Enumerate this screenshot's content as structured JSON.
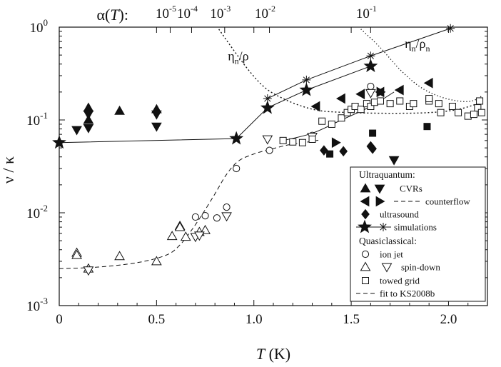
{
  "chart_data": {
    "type": "scatter",
    "xlabel": "T (K)",
    "ylabel": "ν / κ",
    "xlim": [
      0,
      2.2
    ],
    "ylim": [
      0.001,
      1
    ],
    "yscale": "log",
    "x_ticks": [
      "0",
      "0.5",
      "1.0",
      "1.5",
      "2.0"
    ],
    "y_ticks": [
      {
        "base": "10",
        "exp": "0"
      },
      {
        "base": "10",
        "exp": "-1"
      },
      {
        "base": "10",
        "exp": "-2"
      },
      {
        "base": "10",
        "exp": "-3"
      }
    ],
    "top_axis": {
      "label": "α(T):",
      "ticks": [
        {
          "T": 0.57,
          "base": "10",
          "exp": "-5"
        },
        {
          "T": 0.68,
          "base": "10",
          "exp": "-4"
        },
        {
          "T": 0.85,
          "base": "10",
          "exp": "-3"
        },
        {
          "T": 1.08,
          "base": "10",
          "exp": "-2"
        },
        {
          "T": 1.6,
          "base": "10",
          "exp": "-1"
        }
      ]
    },
    "annotations": [
      {
        "num": "η",
        "num_sub": "n",
        "den": "ρ",
        "den_sub": "",
        "x": 0.92,
        "y": 0.44
      },
      {
        "num": "η",
        "num_sub": "n",
        "den": "ρ",
        "den_sub": "n",
        "x": 1.84,
        "y": 0.6
      }
    ],
    "legend": {
      "position": "bottom-right",
      "ultraquantum_label": "Ultraquantum:",
      "quasiclassical_label": "Quasiclassical:",
      "entries": [
        {
          "key": "cvrs",
          "label": "CVRs"
        },
        {
          "key": "counterflow",
          "label": "counterflow"
        },
        {
          "key": "ultrasound",
          "label": "ultrasound"
        },
        {
          "key": "simulations",
          "label": "simulations"
        },
        {
          "key": "ionjet",
          "label": "ion jet"
        },
        {
          "key": "spindown",
          "label": "spin-down"
        },
        {
          "key": "towed",
          "label": "towed grid"
        },
        {
          "key": "fit",
          "label": "fit to KS2008b"
        }
      ]
    },
    "series": [
      {
        "name": "CVRs up",
        "marker": "tri-up-filled",
        "points": [
          [
            0.15,
            0.135
          ],
          [
            0.15,
            0.1
          ],
          [
            0.31,
            0.125
          ],
          [
            0.5,
            0.13
          ]
        ]
      },
      {
        "name": "CVRs down",
        "marker": "tri-down-filled",
        "points": [
          [
            0.09,
            0.078
          ],
          [
            0.15,
            0.115
          ],
          [
            0.15,
            0.082
          ],
          [
            0.5,
            0.115
          ],
          [
            0.5,
            0.085
          ]
        ]
      },
      {
        "name": "counterflow left",
        "marker": "tri-left-filled",
        "points": [
          [
            1.32,
            0.14
          ],
          [
            1.45,
            0.17
          ],
          [
            1.55,
            0.19
          ],
          [
            1.65,
            0.2
          ],
          [
            1.75,
            0.21
          ],
          [
            1.9,
            0.25
          ]
        ]
      },
      {
        "name": "counterflow right",
        "marker": "tri-right-filled",
        "points": [
          [
            1.42,
            0.057
          ],
          [
            1.65,
            0.2
          ]
        ]
      },
      {
        "name": "ultrasound",
        "marker": "diamond-filled",
        "points": [
          [
            1.36,
            0.047
          ],
          [
            1.46,
            0.046
          ],
          [
            1.6,
            0.052
          ],
          [
            1.61,
            0.049
          ]
        ]
      },
      {
        "name": "ultrasound squares",
        "marker": "square-filled",
        "points": [
          [
            1.61,
            0.072
          ],
          [
            1.39,
            0.043
          ],
          [
            1.89,
            0.085
          ]
        ]
      },
      {
        "name": "extra down",
        "marker": "tri-down-filled",
        "points": [
          [
            1.72,
            0.037
          ]
        ]
      },
      {
        "name": "simulations stars",
        "marker": "star-filled",
        "points": [
          [
            0,
            0.057
          ],
          [
            0.91,
            0.063
          ],
          [
            1.07,
            0.135
          ],
          [
            1.27,
            0.21
          ],
          [
            1.6,
            0.38
          ]
        ]
      },
      {
        "name": "simulations asterisks",
        "marker": "asterisk",
        "points": [
          [
            1.07,
            0.17
          ],
          [
            1.27,
            0.27
          ],
          [
            1.6,
            0.49
          ],
          [
            2.01,
            0.97
          ]
        ]
      },
      {
        "name": "ion jet",
        "marker": "circle-open",
        "points": [
          [
            0.7,
            0.009
          ],
          [
            0.75,
            0.0093
          ],
          [
            0.81,
            0.0088
          ],
          [
            0.86,
            0.0115
          ],
          [
            0.91,
            0.03
          ],
          [
            1.08,
            0.047
          ],
          [
            1.3,
            0.068
          ],
          [
            1.6,
            0.23
          ]
        ]
      },
      {
        "name": "spin-down up",
        "marker": "tri-up-open",
        "points": [
          [
            0.09,
            0.0037
          ],
          [
            0.09,
            0.0035
          ],
          [
            0.15,
            0.0025
          ],
          [
            0.31,
            0.0034
          ],
          [
            0.5,
            0.003
          ],
          [
            0.58,
            0.0056
          ],
          [
            0.62,
            0.0072
          ],
          [
            0.62,
            0.007
          ],
          [
            0.65,
            0.0055
          ],
          [
            0.72,
            0.0062
          ],
          [
            0.75,
            0.0065
          ]
        ]
      },
      {
        "name": "spin-down down",
        "marker": "tri-down-open",
        "points": [
          [
            0.15,
            0.0024
          ],
          [
            0.7,
            0.0055
          ],
          [
            0.72,
            0.0057
          ],
          [
            0.86,
            0.0092
          ],
          [
            1.07,
            0.062
          ],
          [
            1.3,
            0.066
          ],
          [
            1.6,
            0.195
          ]
        ]
      },
      {
        "name": "towed grid",
        "marker": "square-open",
        "points": [
          [
            1.15,
            0.06
          ],
          [
            1.2,
            0.058
          ],
          [
            1.25,
            0.057
          ],
          [
            1.3,
            0.062
          ],
          [
            1.35,
            0.097
          ],
          [
            1.4,
            0.09
          ],
          [
            1.45,
            0.105
          ],
          [
            1.48,
            0.12
          ],
          [
            1.5,
            0.13
          ],
          [
            1.52,
            0.14
          ],
          [
            1.55,
            0.13
          ],
          [
            1.58,
            0.15
          ],
          [
            1.6,
            0.14
          ],
          [
            1.62,
            0.155
          ],
          [
            1.65,
            0.16
          ],
          [
            1.7,
            0.15
          ],
          [
            1.75,
            0.16
          ],
          [
            1.8,
            0.14
          ],
          [
            1.82,
            0.15
          ],
          [
            1.9,
            0.16
          ],
          [
            1.9,
            0.17
          ],
          [
            1.95,
            0.15
          ],
          [
            2.02,
            0.14
          ],
          [
            2.05,
            0.12
          ],
          [
            2.1,
            0.11
          ],
          [
            2.13,
            0.115
          ],
          [
            2.15,
            0.135
          ],
          [
            2.16,
            0.16
          ],
          [
            2.17,
            0.12
          ],
          [
            1.96,
            0.12
          ]
        ]
      }
    ],
    "lines": [
      {
        "name": "simulations stars line",
        "style": "solid",
        "points": [
          [
            0,
            0.057
          ],
          [
            0.91,
            0.063
          ],
          [
            1.07,
            0.135
          ],
          [
            1.27,
            0.21
          ],
          [
            1.6,
            0.38
          ]
        ]
      },
      {
        "name": "simulations asterisks line",
        "style": "solid",
        "points": [
          [
            1.07,
            0.17
          ],
          [
            1.27,
            0.27
          ],
          [
            1.6,
            0.49
          ],
          [
            2.01,
            0.97
          ]
        ]
      },
      {
        "name": "towed grid fit",
        "style": "solid",
        "points": [
          [
            1.15,
            0.06
          ],
          [
            1.3,
            0.072
          ],
          [
            1.45,
            0.1
          ],
          [
            1.6,
            0.14
          ],
          [
            1.72,
            0.2
          ]
        ]
      },
      {
        "name": "fit to KS2008b",
        "style": "dashed",
        "points": [
          [
            0,
            0.0025
          ],
          [
            0.2,
            0.0026
          ],
          [
            0.4,
            0.0029
          ],
          [
            0.55,
            0.0035
          ],
          [
            0.62,
            0.0045
          ],
          [
            0.68,
            0.0065
          ],
          [
            0.74,
            0.01
          ],
          [
            0.8,
            0.016
          ],
          [
            0.86,
            0.026
          ],
          [
            0.92,
            0.036
          ],
          [
            1.0,
            0.043
          ],
          [
            1.08,
            0.048
          ],
          [
            1.18,
            0.054
          ],
          [
            1.28,
            0.058
          ],
          [
            1.34,
            0.061
          ]
        ]
      },
      {
        "name": "eta_n over rho",
        "style": "dotted-dense",
        "points": [
          [
            0.82,
            0.95
          ],
          [
            0.9,
            0.55
          ],
          [
            0.98,
            0.33
          ],
          [
            1.06,
            0.22
          ],
          [
            1.15,
            0.17
          ],
          [
            1.25,
            0.14
          ],
          [
            1.35,
            0.125
          ],
          [
            1.5,
            0.12
          ],
          [
            1.7,
            0.118
          ],
          [
            1.9,
            0.12
          ],
          [
            2.05,
            0.13
          ],
          [
            2.17,
            0.155
          ]
        ]
      },
      {
        "name": "eta_n over rho_n",
        "style": "dotted-sparse",
        "points": [
          [
            1.55,
            0.95
          ],
          [
            1.65,
            0.6
          ],
          [
            1.75,
            0.35
          ],
          [
            1.85,
            0.23
          ],
          [
            1.95,
            0.18
          ],
          [
            2.05,
            0.16
          ],
          [
            2.12,
            0.16
          ],
          [
            2.17,
            0.18
          ]
        ]
      }
    ]
  }
}
